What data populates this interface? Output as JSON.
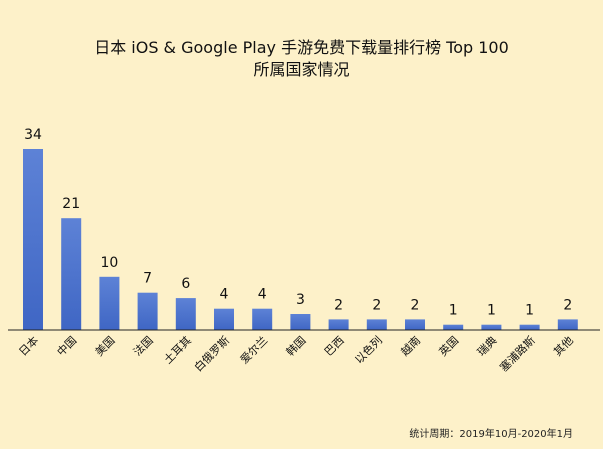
{
  "chart_data": {
    "type": "bar",
    "title": "日本 iOS & Google Play 手游免费下载量排行榜 Top 100",
    "subtitle": "所属国家情况",
    "categories": [
      "日本",
      "中国",
      "美国",
      "法国",
      "土耳其",
      "白俄罗斯",
      "爱尔兰",
      "韩国",
      "巴西",
      "以色列",
      "越南",
      "英国",
      "瑞典",
      "塞浦路斯",
      "其他"
    ],
    "values": [
      34,
      21,
      10,
      7,
      6,
      4,
      4,
      3,
      2,
      2,
      2,
      1,
      1,
      1,
      2
    ],
    "xlabel": "",
    "ylabel": "",
    "ylim": [
      0,
      34
    ],
    "grid": false,
    "legend": "none",
    "bar_color": "#3f66c4",
    "bar_color_light": "#5d82d6",
    "background_color": "#fdf1c9"
  },
  "footnote": "统计周期：2019年10月-2020年1月"
}
